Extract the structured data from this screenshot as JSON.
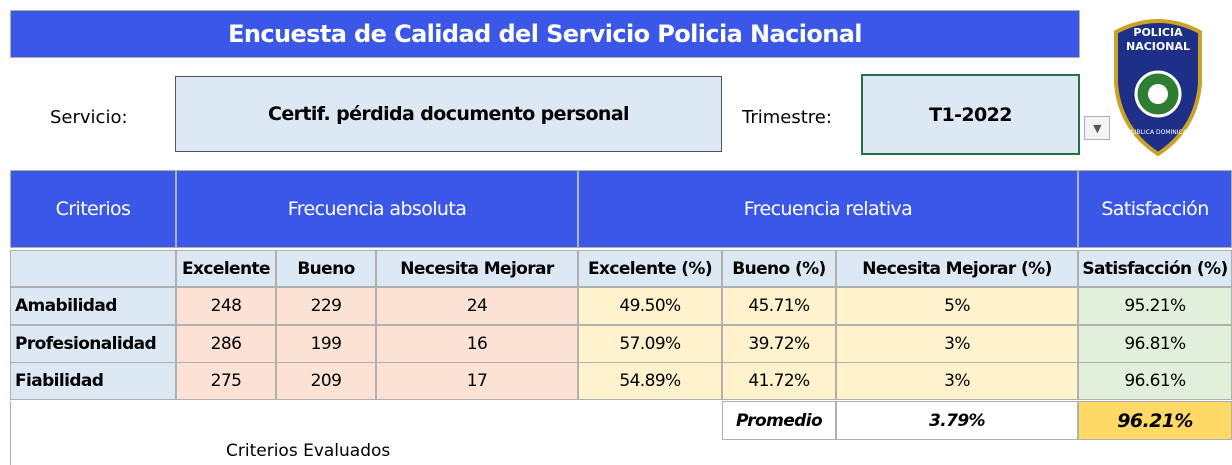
{
  "header": {
    "title": "Encuesta de Calidad del Servicio Policia Nacional"
  },
  "form": {
    "service_label": "Servicio:",
    "service": "Certif. pérdida documento personal",
    "quarter_label": "Trimestre:",
    "quarter": "T1-2022"
  },
  "logo": {
    "top": "POLICIA",
    "middle": "NACIONAL",
    "bottom": "REPUBLICA DOMINICANA"
  },
  "table": {
    "groups": [
      "Criterios",
      "Frecuencia absoluta",
      "Frecuencia relativa",
      "Satisfacción"
    ],
    "columns": [
      "Excelente",
      "Bueno",
      "Necesita Mejorar",
      "Excelente (%)",
      "Bueno (%)",
      "Necesita Mejorar (%)",
      "Satisfacción (%)"
    ],
    "rows": [
      [
        "Amabilidad",
        "248",
        "229",
        "24",
        "49.50%",
        "45.71%",
        "5%",
        "95.21%"
      ],
      [
        "Profesionalidad",
        "286",
        "199",
        "16",
        "57.09%",
        "39.72%",
        "3%",
        "96.81%"
      ],
      [
        "Fiabilidad",
        "275",
        "209",
        "17",
        "54.89%",
        "41.72%",
        "3%",
        "96.61%"
      ]
    ],
    "summary": {
      "label": "Promedio",
      "value": "3.79%",
      "satisfaction": "96.21%"
    }
  },
  "caption": "Criterios Evaluados"
}
